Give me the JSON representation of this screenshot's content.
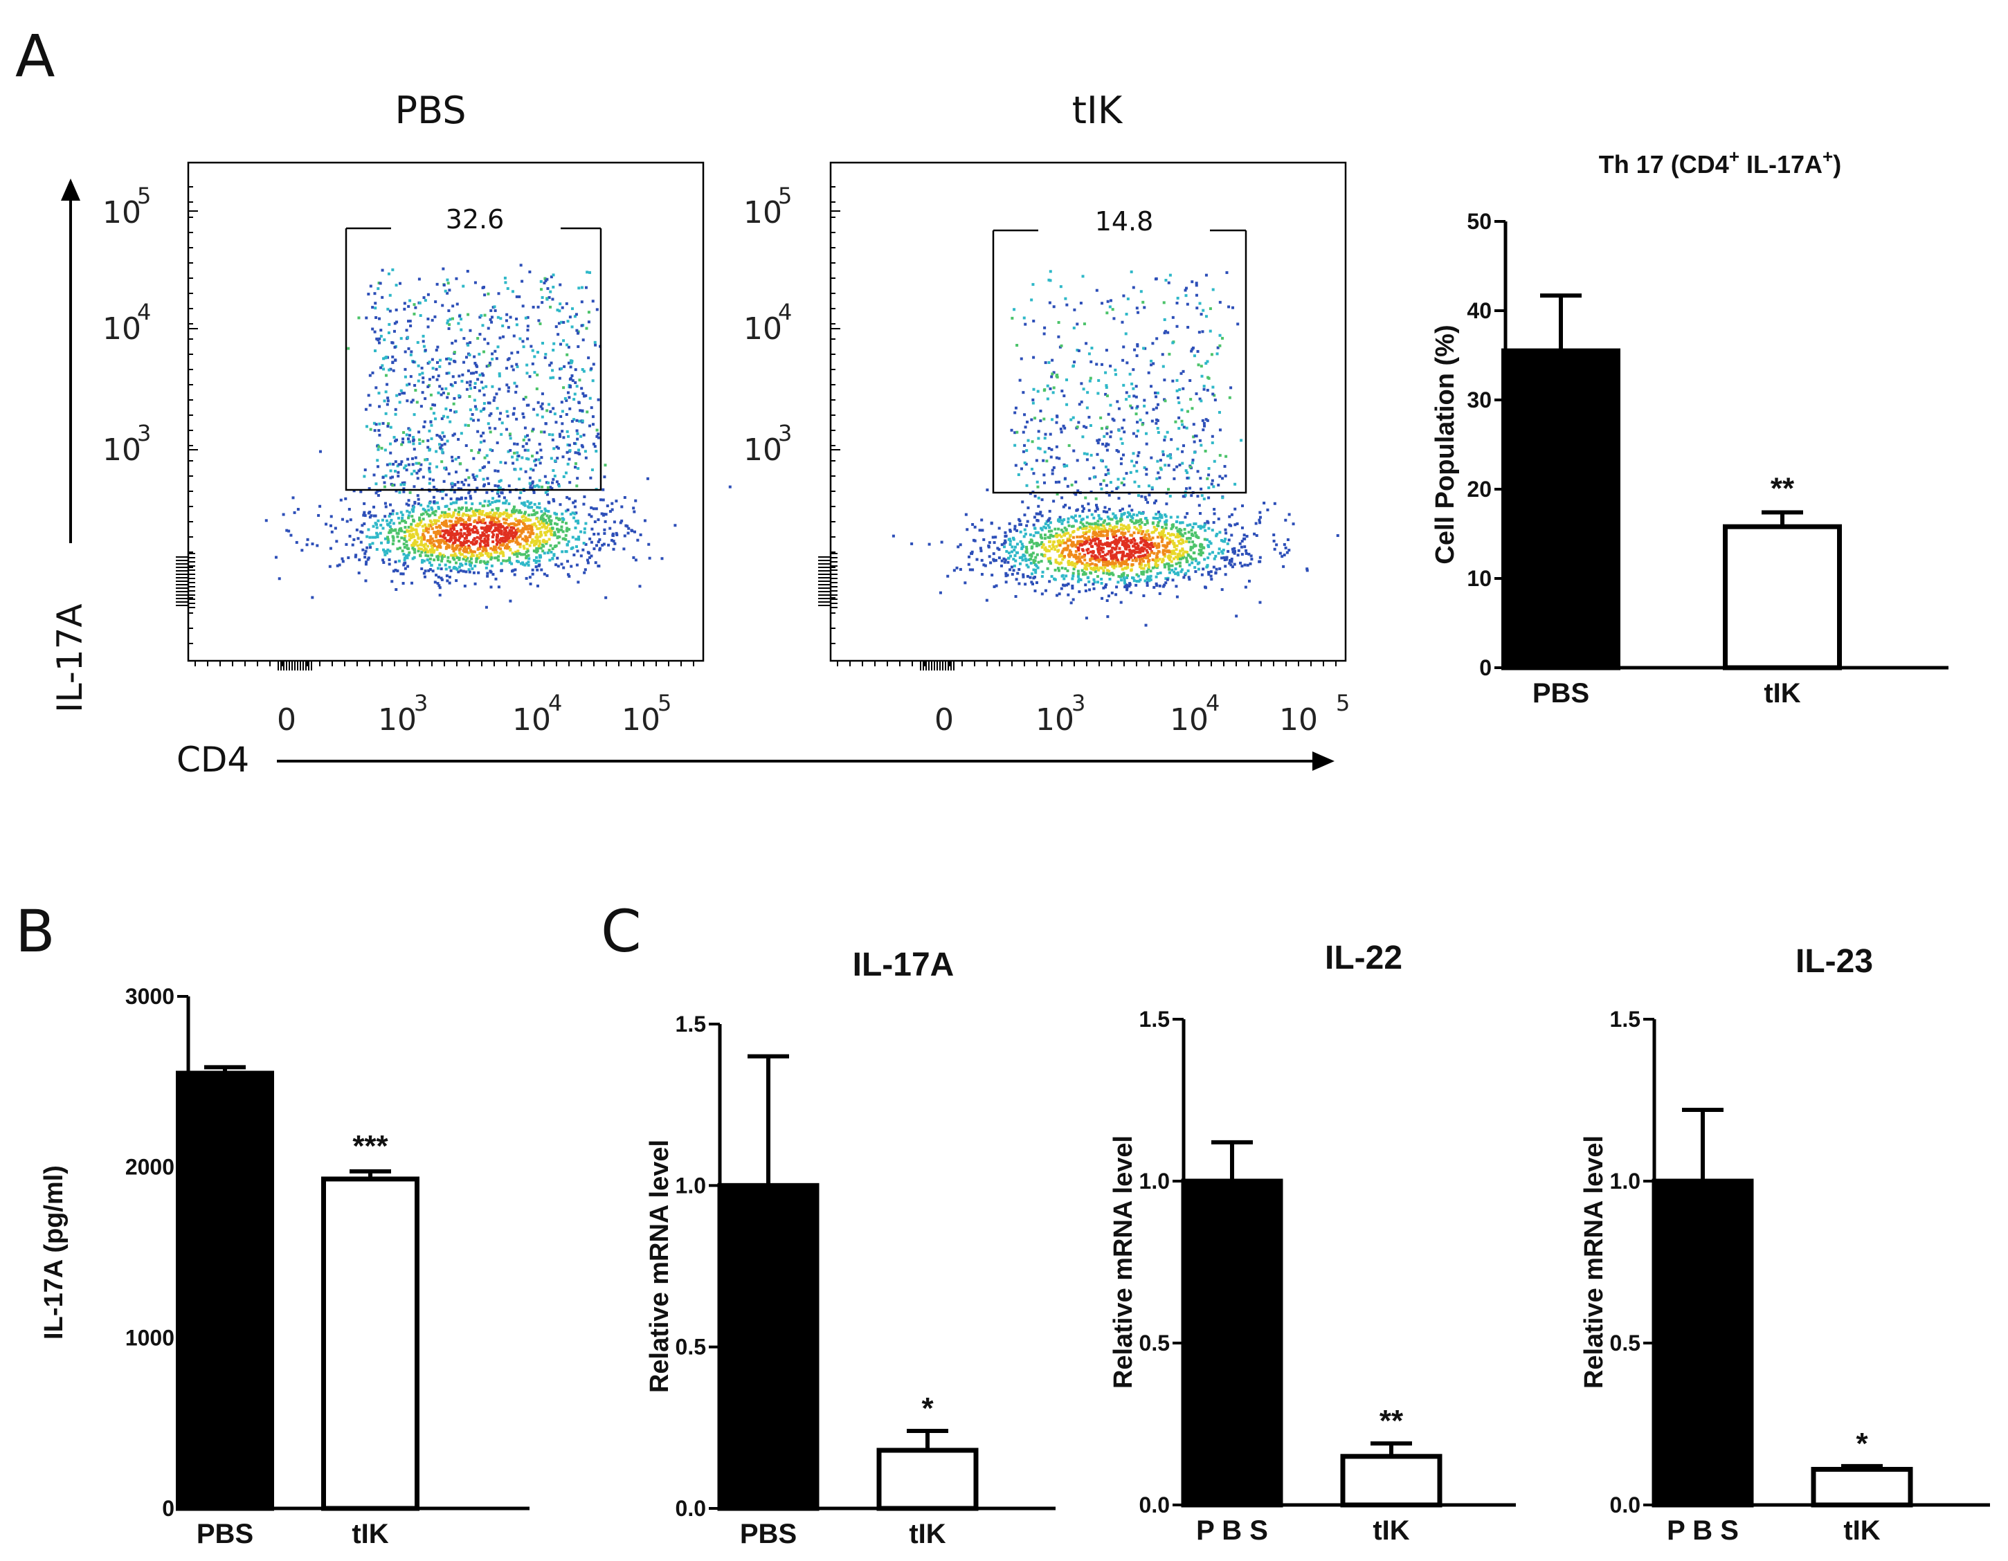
{
  "panels": {
    "a": "A",
    "b": "B",
    "c": "C"
  },
  "flow": {
    "axis_y": "IL-17A",
    "axis_x": "CD4",
    "y_ticks": [
      {
        "base": "10",
        "exp": "5"
      },
      {
        "base": "10",
        "exp": "4"
      },
      {
        "base": "10",
        "exp": "3"
      }
    ],
    "x_ticks": [
      {
        "base": "0",
        "exp": ""
      },
      {
        "base": "10",
        "exp": "3"
      },
      {
        "base": "10",
        "exp": "4"
      },
      {
        "base": "10",
        "exp": "5"
      }
    ],
    "plots": [
      {
        "title": "PBS",
        "gate_percent": "32.6"
      },
      {
        "title": "tIK",
        "gate_percent": "14.8"
      }
    ]
  },
  "chart_data": [
    {
      "id": "A-bar",
      "type": "bar",
      "title_main": "Th 17 (CD4",
      "title_sup1": "+",
      "title_mid": " IL-17A",
      "title_sup2": "+",
      "title_end": ")",
      "ylabel": "Cell Population (%)",
      "xlabel": "",
      "categories": [
        "PBS",
        "tIK"
      ],
      "values": [
        35.5,
        15.8
      ],
      "errors": [
        6.2,
        1.6
      ],
      "significance": [
        "",
        "**"
      ],
      "ylim": [
        0,
        50
      ],
      "yticks": [
        0,
        10,
        20,
        30,
        40,
        50
      ],
      "ytick_labels": [
        "0",
        "10",
        "20",
        "30",
        "40",
        "50"
      ],
      "colors": [
        "#000000",
        "#ffffff"
      ]
    },
    {
      "id": "B",
      "type": "bar",
      "title": "",
      "ylabel": "IL-17A (pg/ml)",
      "xlabel": "",
      "categories": [
        "PBS",
        "tIK"
      ],
      "values": [
        2550,
        1930
      ],
      "errors": [
        35,
        45
      ],
      "significance": [
        "",
        "***"
      ],
      "ylim": [
        0,
        3000
      ],
      "yticks": [
        0,
        1000,
        2000,
        3000
      ],
      "ytick_labels": [
        "0",
        "1000",
        "2000",
        "3000"
      ],
      "colors": [
        "#000000",
        "#ffffff"
      ]
    },
    {
      "id": "C1",
      "type": "bar",
      "title": "IL-17A",
      "ylabel": "Relative mRNA level",
      "xlabel": "",
      "categories": [
        "PBS",
        "tIK"
      ],
      "values": [
        1.0,
        0.18
      ],
      "errors": [
        0.4,
        0.06
      ],
      "significance": [
        "",
        "*"
      ],
      "ylim": [
        0,
        1.5
      ],
      "yticks": [
        0,
        0.5,
        1.0,
        1.5
      ],
      "ytick_labels": [
        "0.0",
        "0.5",
        "1.0",
        "1.5"
      ],
      "colors": [
        "#000000",
        "#ffffff"
      ]
    },
    {
      "id": "C2",
      "type": "bar",
      "title": "IL-22",
      "ylabel": "Relative mRNA level",
      "xlabel": "",
      "categories": [
        "P B S",
        "tIK"
      ],
      "values": [
        1.0,
        0.15
      ],
      "errors": [
        0.12,
        0.04
      ],
      "significance": [
        "",
        "**"
      ],
      "ylim": [
        0,
        1.5
      ],
      "yticks": [
        0,
        0.5,
        1.0,
        1.5
      ],
      "ytick_labels": [
        "0.0",
        "0.5",
        "1.0",
        "1.5"
      ],
      "colors": [
        "#000000",
        "#ffffff"
      ]
    },
    {
      "id": "C3",
      "type": "bar",
      "title": "IL-23",
      "ylabel": "Relative mRNA level",
      "xlabel": "",
      "categories": [
        "P B S",
        "tIK"
      ],
      "values": [
        1.0,
        0.11
      ],
      "errors": [
        0.22,
        0.01
      ],
      "significance": [
        "",
        "*"
      ],
      "ylim": [
        0,
        1.5
      ],
      "yticks": [
        0,
        0.5,
        1.0,
        1.5
      ],
      "ytick_labels": [
        "0.0",
        "0.5",
        "1.0",
        "1.5"
      ],
      "colors": [
        "#000000",
        "#ffffff"
      ]
    }
  ]
}
